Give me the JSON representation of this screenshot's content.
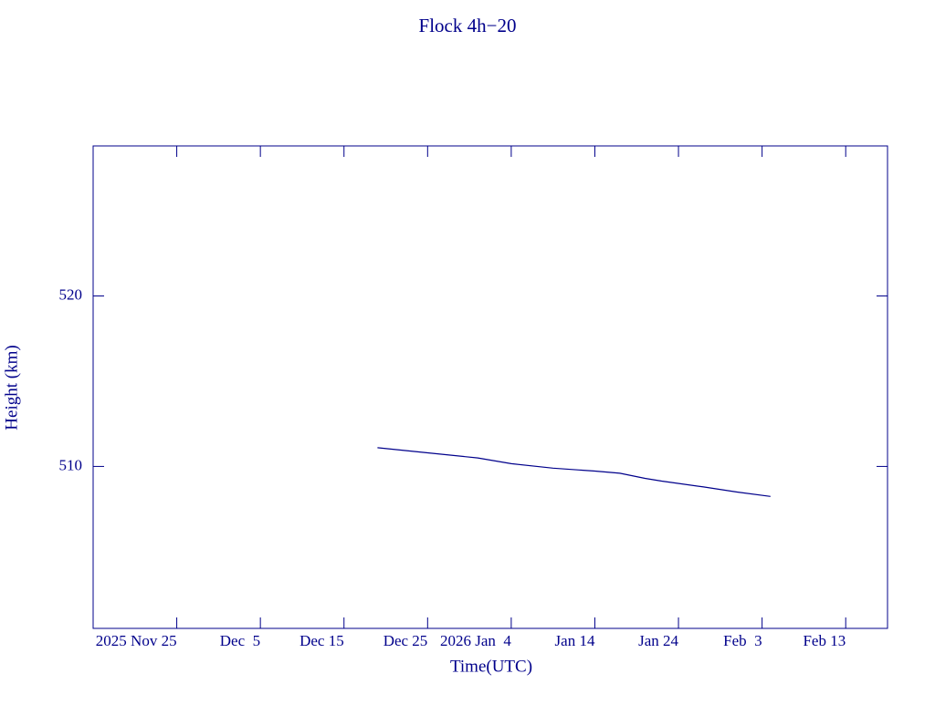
{
  "chart_data": {
    "type": "line",
    "title": "Flock 4h−20",
    "x_label": "Time(UTC)",
    "y_label": "Height (km)",
    "color": "#00008b",
    "x": [
      "2025-12-19",
      "2025-12-25",
      "2025-12-31",
      "2026-01-04",
      "2026-01-09",
      "2026-01-14",
      "2026-01-17",
      "2026-01-20",
      "2026-01-22",
      "2026-01-27",
      "2026-01-31",
      "2026-02-04"
    ],
    "values": [
      511.1,
      510.8,
      510.5,
      510.16,
      509.9,
      509.73,
      509.6,
      509.3,
      509.14,
      508.8,
      508.5,
      508.24
    ],
    "xlim": [
      "2025-11-15",
      "2026-02-18"
    ],
    "xticks": [
      {
        "value": "2025-11-25",
        "label": "2025 Nov 25"
      },
      {
        "value": "2025-12-05",
        "label": "Dec  5"
      },
      {
        "value": "2025-12-15",
        "label": "Dec 15"
      },
      {
        "value": "2025-12-25",
        "label": "Dec 25"
      },
      {
        "value": "2026-01-04",
        "label": "2026 Jan  4"
      },
      {
        "value": "2026-01-14",
        "label": "Jan 14"
      },
      {
        "value": "2026-01-24",
        "label": "Jan 24"
      },
      {
        "value": "2026-02-03",
        "label": "Feb  3"
      },
      {
        "value": "2026-02-13",
        "label": "Feb 13"
      }
    ],
    "ylim": [
      500.5,
      528.8
    ],
    "yticks": [
      510,
      520
    ]
  }
}
